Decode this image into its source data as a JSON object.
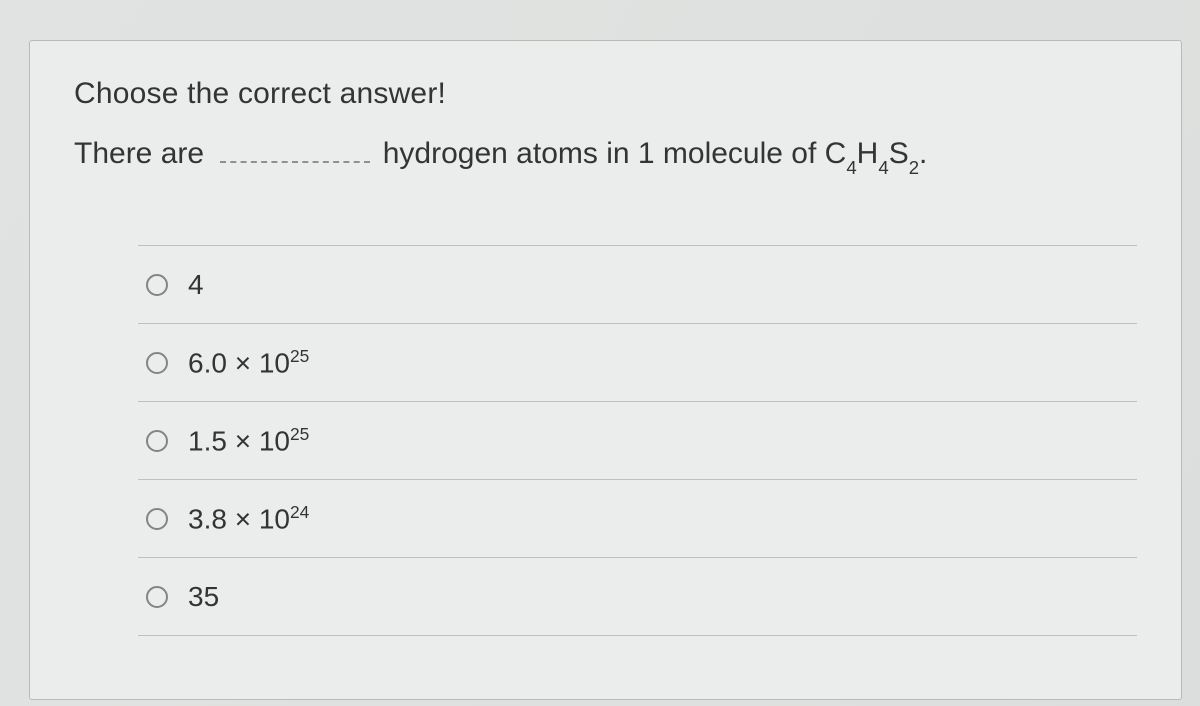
{
  "card": {
    "background_color": "#ebedec",
    "border_color": "#b9bbba"
  },
  "prompt": "Choose the correct answer!",
  "question": {
    "prefix": "There are ",
    "suffix_before_formula": " hydrogen atoms in 1 molecule of ",
    "formula_parts": [
      "C",
      "4",
      "H",
      "4",
      "S",
      "2"
    ],
    "tail": "."
  },
  "options": [
    {
      "type": "plain",
      "text": "4"
    },
    {
      "type": "sci",
      "mantissa": "6.0",
      "exp": "25"
    },
    {
      "type": "sci",
      "mantissa": "1.5",
      "exp": "25"
    },
    {
      "type": "sci",
      "mantissa": "3.8",
      "exp": "24"
    },
    {
      "type": "plain",
      "text": "35"
    }
  ],
  "style": {
    "font_color": "#333534",
    "divider_color": "#bfc1bf",
    "radio_border": "#838583",
    "font_size_prompt": 30,
    "font_size_option": 28
  }
}
